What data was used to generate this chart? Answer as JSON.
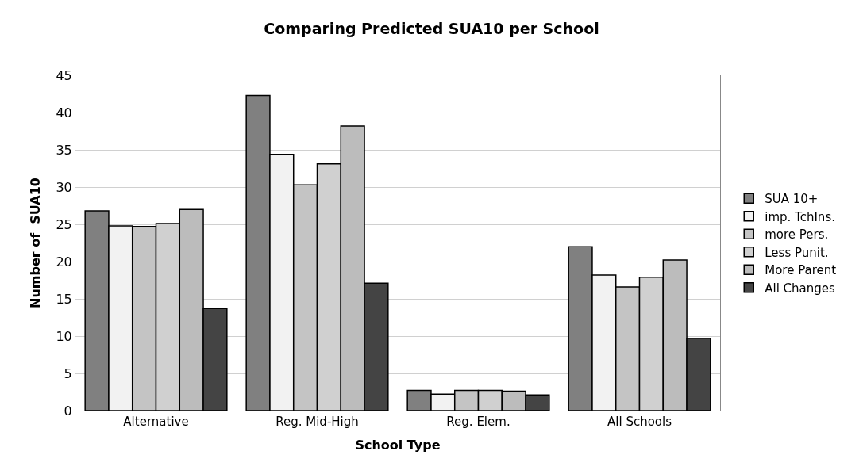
{
  "chart_data": {
    "type": "bar",
    "title": "Comparing Predicted SUA10 per School",
    "xlabel": "School Type",
    "ylabel": "Number of  SUA10",
    "categories": [
      "Alternative",
      "Reg. Mid-High",
      "Reg. Elem.",
      "All Schools"
    ],
    "series": [
      {
        "name": "SUA 10+",
        "color": "#808080",
        "values": [
          26.8,
          42.3,
          2.7,
          22.0
        ]
      },
      {
        "name": "imp. TchIns.",
        "color": "#f2f2f2",
        "values": [
          24.8,
          34.4,
          2.2,
          18.2
        ]
      },
      {
        "name": "more Pers.",
        "color": "#c4c4c4",
        "values": [
          24.7,
          30.3,
          2.7,
          16.6
        ]
      },
      {
        "name": "Less Punit.",
        "color": "#d0d0d0",
        "values": [
          25.1,
          33.1,
          2.7,
          17.9
        ]
      },
      {
        "name": "More Parent",
        "color": "#bcbcbc",
        "values": [
          27.0,
          38.2,
          2.6,
          20.2
        ]
      },
      {
        "name": "All Changes",
        "color": "#444444",
        "values": [
          13.7,
          17.1,
          2.1,
          9.7
        ]
      }
    ],
    "ylim": [
      0,
      45
    ],
    "yticks": [
      0,
      5,
      10,
      15,
      20,
      25,
      30,
      35,
      40,
      45
    ],
    "grid": "y",
    "legend": "right"
  }
}
